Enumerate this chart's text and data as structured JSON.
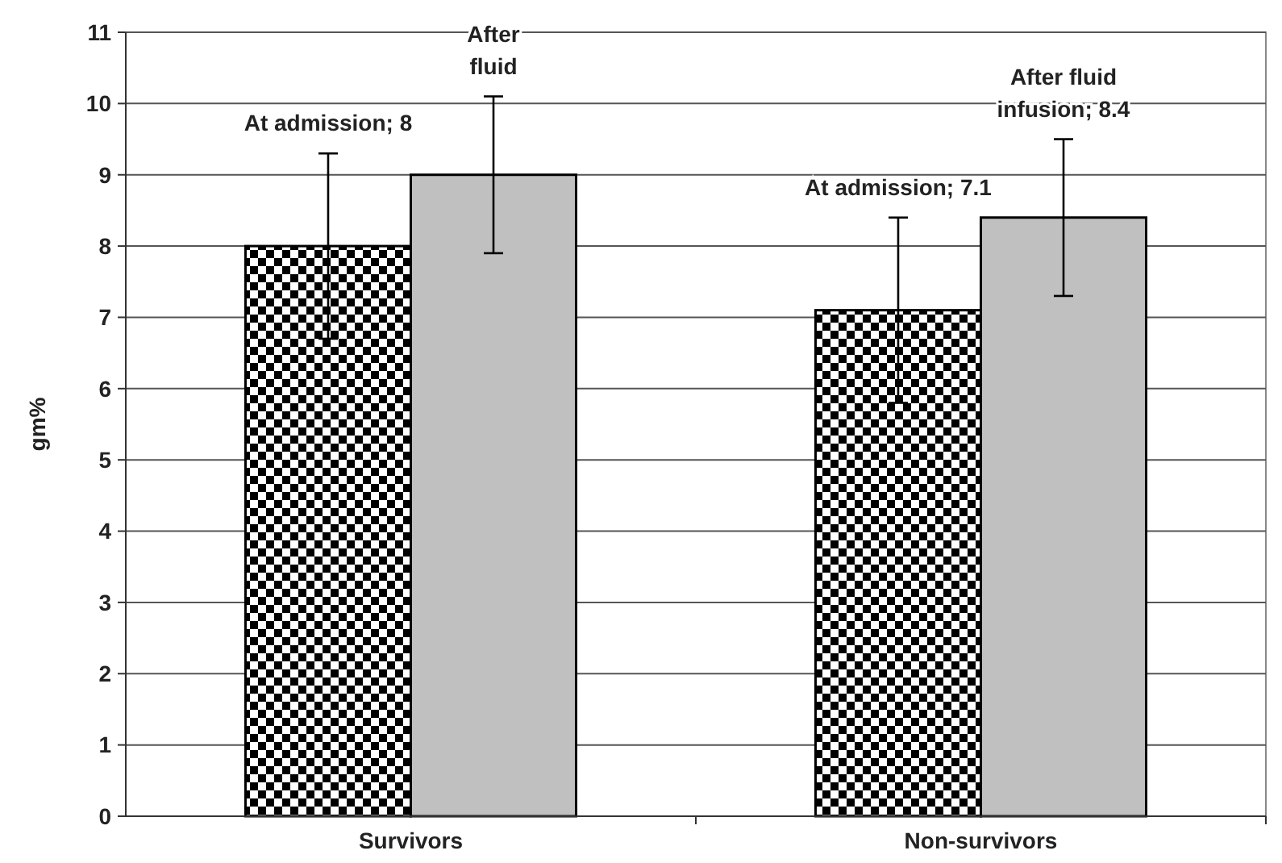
{
  "chart_data": {
    "type": "bar",
    "ylabel": "gm%",
    "categories": [
      "Survivors",
      "Non-survivors"
    ],
    "series": [
      {
        "color": "#000000",
        "values": [
          8,
          7.1
        ],
        "errors": [
          1.3,
          1.3
        ]
      },
      {
        "color": "#c0c0c0",
        "values": [
          9,
          8.4
        ],
        "errors": [
          1.1,
          1.1
        ]
      }
    ],
    "annotations": [
      "At admission; 8",
      "After\nfluid",
      "At admission; 7.1",
      "After fluid\ninfusion; 8.4"
    ],
    "ylim": [
      0,
      11
    ],
    "yticks": [
      0,
      1,
      2,
      3,
      4,
      5,
      6,
      7,
      8,
      9,
      10,
      11
    ],
    "grid": "y"
  }
}
